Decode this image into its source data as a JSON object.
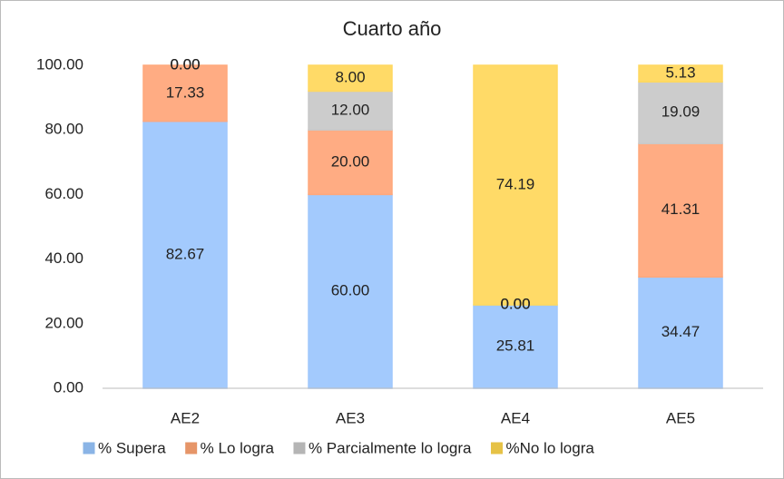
{
  "chart_data": {
    "type": "stacked_bar",
    "title": "Cuarto año",
    "categories": [
      "AE2",
      "AE3",
      "AE4",
      "AE5"
    ],
    "series": [
      {
        "name": "% Supera",
        "color": "#a9c6ec",
        "values": [
          82.67,
          60,
          25.81,
          34.47
        ],
        "value_labels": [
          "82.67",
          "60.00",
          "25.81",
          "34.47"
        ]
      },
      {
        "name": "% Lo logra",
        "color": "#f6ad8e",
        "values": [
          17.33,
          20,
          0,
          41.31
        ],
        "value_labels": [
          "17.33",
          "20.00",
          "0.00",
          "41.31"
        ]
      },
      {
        "name": "% Parcialmente lo logra",
        "color": "#c9c9c9",
        "values": [
          0,
          12,
          0,
          19.09
        ],
        "value_labels": [
          "0.00",
          "12.00",
          "0.00",
          "19.09"
        ]
      },
      {
        "name": "%No lo logra",
        "color": "#ffd983",
        "values": [
          0,
          8,
          74.19,
          5.13
        ],
        "value_labels": [
          "0.00",
          "8.00",
          "74.19",
          "5.13"
        ]
      }
    ],
    "ylim": [
      0,
      100
    ],
    "yticks": [
      {
        "value": 0,
        "label": "0.00"
      },
      {
        "value": 20,
        "label": "20.00"
      },
      {
        "value": 40,
        "label": "40.00"
      },
      {
        "value": 60,
        "label": "60.00"
      },
      {
        "value": 80,
        "label": "80.00"
      },
      {
        "value": 100,
        "label": "100.00"
      }
    ],
    "grid": false,
    "legend": "bottom"
  }
}
